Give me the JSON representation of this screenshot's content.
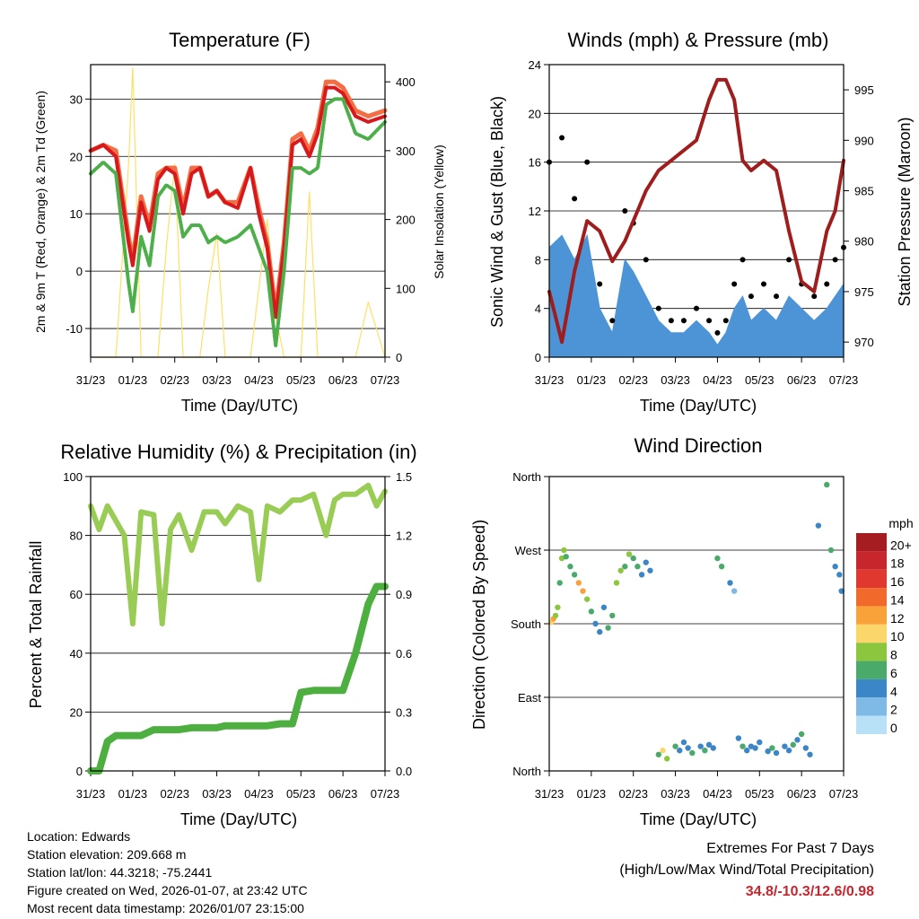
{
  "time_ticks": [
    "31/23",
    "01/23",
    "02/23",
    "03/23",
    "04/23",
    "05/23",
    "06/23",
    "07/23"
  ],
  "colors": {
    "temp2m": "#d7191c",
    "temp9m": "#f46d43",
    "dewpoint": "#4daf4a",
    "solar": "#ffe066",
    "wind": "#4d94d6",
    "gust": "#000000",
    "pressure": "#a01d1d",
    "rh": "#99cc55",
    "rain": "#4caf3f",
    "extremes": "#c8262d"
  },
  "chart_data": [
    {
      "id": "temperature",
      "type": "line",
      "title": "Temperature (F)",
      "xlabel": "Time (Day/UTC)",
      "ylabel": "2m & 9m T (Red, Orange) & 2m Td (Green)",
      "y2label": "Solar Insolation (Yellow)",
      "ylim": [
        -15,
        36
      ],
      "y2lim": [
        0,
        425
      ],
      "yticks": [
        -10,
        0,
        10,
        20,
        30
      ],
      "y2ticks": [
        0,
        100,
        200,
        300,
        400
      ],
      "x": [
        0,
        0.3,
        0.6,
        0.9,
        1.0,
        1.2,
        1.4,
        1.6,
        1.8,
        2.0,
        2.2,
        2.4,
        2.6,
        2.8,
        3.0,
        3.2,
        3.5,
        3.8,
        4.0,
        4.2,
        4.4,
        4.6,
        4.8,
        5.0,
        5.2,
        5.4,
        5.6,
        5.8,
        6.0,
        6.3,
        6.6,
        7.0
      ],
      "series": [
        {
          "name": "2m T",
          "values": [
            21,
            22,
            20,
            5,
            1,
            12,
            7,
            16,
            18,
            17,
            10,
            17,
            18,
            13,
            14,
            12,
            11,
            18,
            10,
            4,
            -8,
            4,
            22,
            23,
            20,
            24,
            32,
            32,
            31,
            27,
            26,
            27
          ]
        },
        {
          "name": "9m T",
          "values": [
            21,
            22,
            21,
            6,
            2,
            13,
            8,
            17,
            18,
            18,
            11,
            18,
            18,
            13,
            14,
            12,
            12,
            18,
            11,
            5,
            -7,
            5,
            23,
            24,
            21,
            25,
            33,
            33,
            32,
            28,
            27,
            28
          ]
        },
        {
          "name": "2m Td",
          "values": [
            17,
            19,
            17,
            -2,
            -7,
            6,
            1,
            13,
            15,
            14,
            6,
            8,
            8,
            5,
            6,
            5,
            6,
            8,
            4,
            0,
            -13,
            0,
            18,
            18,
            17,
            18,
            29,
            30,
            30,
            24,
            23,
            26
          ]
        },
        {
          "name": "Solar",
          "values": [
            0,
            0,
            0,
            280,
            420,
            0,
            0,
            0,
            160,
            280,
            0,
            0,
            0,
            100,
            180,
            0,
            0,
            0,
            100,
            200,
            60,
            0,
            0,
            0,
            240,
            0,
            0,
            0,
            0,
            0,
            80,
            0
          ],
          "axis": "y2"
        }
      ]
    },
    {
      "id": "winds",
      "type": "line",
      "title": "Winds (mph) & Pressure (mb)",
      "xlabel": "Time (Day/UTC)",
      "ylabel": "Sonic Wind & Gust (Blue, Black)",
      "y2label": "Station Pressure (Maroon)",
      "ylim": [
        0,
        24
      ],
      "y2lim": [
        968.5,
        997.5
      ],
      "yticks": [
        0,
        4,
        8,
        12,
        16,
        20,
        24
      ],
      "y2ticks": [
        970,
        975,
        980,
        985,
        990,
        995
      ],
      "x": [
        0,
        0.3,
        0.6,
        0.9,
        1.2,
        1.5,
        1.8,
        2.0,
        2.3,
        2.6,
        2.9,
        3.2,
        3.5,
        3.8,
        4.0,
        4.2,
        4.4,
        4.6,
        4.8,
        5.1,
        5.4,
        5.7,
        6.0,
        6.3,
        6.6,
        6.8,
        7.0
      ],
      "series": [
        {
          "name": "Wind",
          "values": [
            9,
            10,
            8,
            10,
            4,
            2,
            8,
            7,
            5,
            3,
            2,
            2,
            3,
            2,
            1,
            2,
            4,
            5,
            3,
            4,
            3,
            5,
            4,
            3,
            4,
            5,
            6
          ]
        },
        {
          "name": "Gust",
          "values": [
            16,
            18,
            13,
            16,
            6,
            3,
            12,
            11,
            8,
            4,
            3,
            3,
            4,
            3,
            2,
            3,
            6,
            8,
            5,
            6,
            5,
            8,
            6,
            5,
            6,
            8,
            9
          ]
        },
        {
          "name": "Pressure",
          "values": [
            975,
            970,
            977,
            982,
            981,
            978,
            980,
            982,
            985,
            987,
            988,
            989,
            990,
            994,
            996,
            996,
            994,
            988,
            987,
            988,
            987,
            981,
            976,
            975,
            981,
            983,
            988
          ],
          "axis": "y2"
        }
      ]
    },
    {
      "id": "humidity",
      "type": "line",
      "title": "Relative Humidity (%) & Precipitation (in)",
      "xlabel": "Time (Day/UTC)",
      "ylabel": "Percent & Total Rainfall",
      "ylim": [
        0,
        100
      ],
      "y2lim": [
        0,
        1.5
      ],
      "yticks": [
        0,
        20,
        40,
        60,
        80,
        100
      ],
      "y2ticks": [
        0.0,
        0.3,
        0.6,
        0.9,
        1.2,
        1.5
      ],
      "y2tick_labels": [
        "0.0",
        "0.3",
        "0.6",
        "0.9",
        "1.2",
        "1.5"
      ],
      "x": [
        0,
        0.2,
        0.4,
        0.6,
        0.8,
        1.0,
        1.2,
        1.5,
        1.7,
        1.9,
        2.1,
        2.4,
        2.7,
        3.0,
        3.2,
        3.5,
        3.8,
        4.0,
        4.2,
        4.5,
        4.8,
        5.0,
        5.3,
        5.6,
        5.8,
        6.0,
        6.3,
        6.6,
        6.8,
        7.0
      ],
      "series": [
        {
          "name": "RH",
          "values": [
            90,
            82,
            90,
            85,
            80,
            50,
            88,
            87,
            50,
            82,
            87,
            75,
            88,
            88,
            84,
            90,
            88,
            65,
            90,
            88,
            92,
            92,
            94,
            80,
            92,
            94,
            94,
            97,
            90,
            95
          ]
        },
        {
          "name": "Total Precipitation",
          "values": [
            0,
            0,
            0.15,
            0.18,
            0.18,
            0.18,
            0.18,
            0.21,
            0.21,
            0.21,
            0.21,
            0.22,
            0.22,
            0.22,
            0.23,
            0.23,
            0.23,
            0.23,
            0.23,
            0.24,
            0.24,
            0.4,
            0.41,
            0.41,
            0.41,
            0.41,
            0.6,
            0.85,
            0.94,
            0.94
          ],
          "axis": "y2"
        }
      ]
    },
    {
      "id": "direction",
      "type": "scatter",
      "title": "Wind Direction",
      "xlabel": "Time (Day/UTC)",
      "ylabel": "Direction (Colored By Speed)",
      "ylim": [
        0,
        360
      ],
      "ytick_values": [
        0,
        90,
        180,
        270,
        360
      ],
      "ytick_labels": [
        "North",
        "East",
        "South",
        "West",
        "North"
      ],
      "colorbar": {
        "title": "mph",
        "labels": [
          "20+",
          "18",
          "16",
          "14",
          "12",
          "10",
          "8",
          "6",
          "4",
          "2",
          "0"
        ],
        "colors": [
          "#a51c21",
          "#c8262d",
          "#e0382e",
          "#f16a2b",
          "#f9a23a",
          "#fbd66a",
          "#8cc63f",
          "#4aaa6a",
          "#3b86c6",
          "#7fb9e6",
          "#b8e0f7"
        ]
      },
      "x": [
        0.05,
        0.1,
        0.15,
        0.2,
        0.25,
        0.3,
        0.35,
        0.4,
        0.5,
        0.6,
        0.7,
        0.8,
        0.9,
        1.0,
        1.1,
        1.2,
        1.3,
        1.4,
        1.5,
        1.6,
        1.7,
        1.8,
        1.9,
        2.0,
        2.1,
        2.2,
        2.3,
        2.4,
        2.6,
        2.7,
        2.8,
        3.0,
        3.1,
        3.2,
        3.3,
        3.4,
        3.6,
        3.7,
        3.8,
        3.9,
        4.0,
        4.1,
        4.3,
        4.4,
        4.5,
        4.6,
        4.7,
        4.8,
        4.9,
        5.0,
        5.2,
        5.3,
        5.4,
        5.6,
        5.7,
        5.8,
        5.9,
        6.0,
        6.1,
        6.2,
        6.4,
        6.6,
        6.7,
        6.8,
        6.9,
        6.95
      ],
      "values": [
        182,
        186,
        190,
        200,
        230,
        260,
        270,
        262,
        250,
        240,
        230,
        220,
        210,
        195,
        180,
        170,
        200,
        175,
        190,
        230,
        245,
        250,
        265,
        260,
        250,
        240,
        255,
        245,
        20,
        25,
        15,
        30,
        25,
        35,
        28,
        22,
        30,
        25,
        32,
        28,
        260,
        250,
        230,
        220,
        40,
        30,
        25,
        30,
        28,
        35,
        24,
        28,
        22,
        30,
        25,
        32,
        38,
        45,
        28,
        20,
        300,
        350,
        270,
        250,
        240,
        220
      ],
      "speed": [
        10,
        12,
        8,
        7,
        6,
        8,
        7,
        6,
        5,
        6,
        12,
        11,
        7,
        5,
        4,
        4,
        3,
        6,
        6,
        8,
        7,
        6,
        8,
        5,
        5,
        4,
        3,
        3,
        5,
        10,
        7,
        5,
        4,
        3,
        4,
        5,
        4,
        5,
        3,
        4,
        5,
        6,
        3,
        2,
        4,
        5,
        3,
        4,
        3,
        4,
        3,
        5,
        3,
        4,
        4,
        5,
        4,
        5,
        3,
        3,
        4,
        5,
        6,
        4,
        4,
        4
      ]
    }
  ],
  "info": {
    "location": "Location: Edwards",
    "elevation": "Station elevation: 209.668 m",
    "latlon": "Station lat/lon: 44.3218; -75.2441",
    "created": "Figure created on Wed, 2026-01-07, at 23:42 UTC",
    "recent": "Most recent data timestamp: 2026/01/07 23:15:00"
  },
  "extremes": {
    "title": "Extremes For Past 7 Days",
    "subtitle": "(High/Low/Max Wind/Total Precipitation)",
    "values": "34.8/-10.3/12.6/0.98"
  }
}
